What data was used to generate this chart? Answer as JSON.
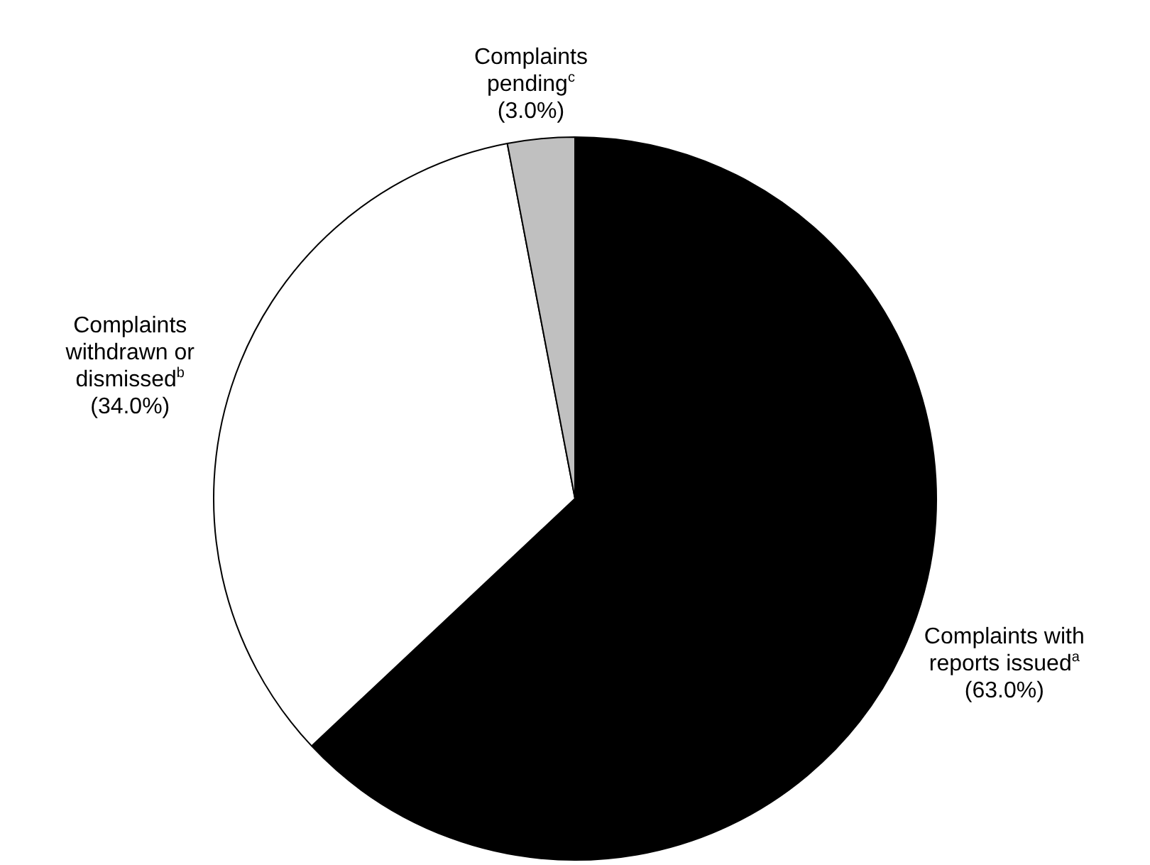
{
  "chart_data": {
    "type": "pie",
    "categories": [
      "Complaints with reports issued$^{a}$",
      "Complaints withdrawn or dismissed$^{b}$",
      "Complaints pending$^{c}$"
    ],
    "values": [
      63.0,
      34.0,
      3.0
    ],
    "colors": [
      "#000000",
      "#ffffff",
      "#c0c0c0"
    ],
    "value_labels": [
      "(63.0%)",
      "(34.0%)",
      "(3.0%)"
    ],
    "legend": false
  }
}
